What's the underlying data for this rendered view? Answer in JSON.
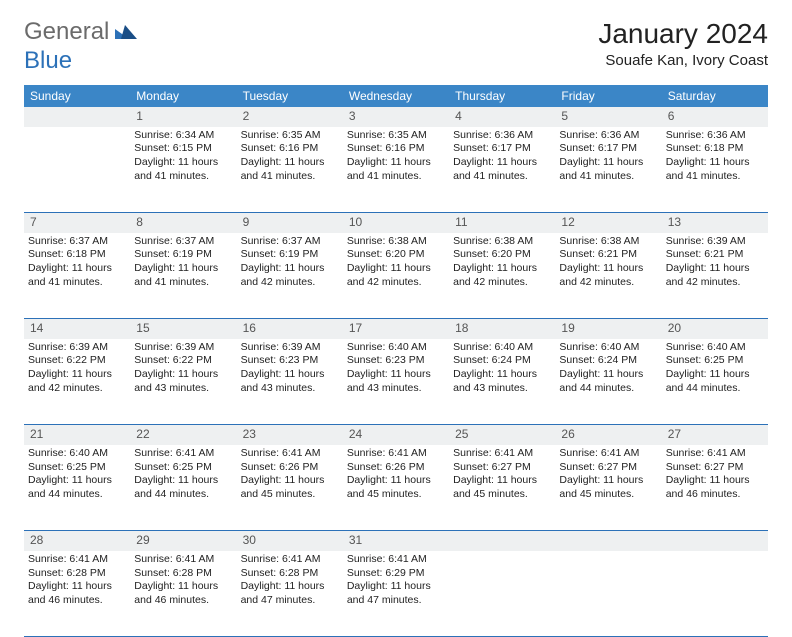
{
  "brand": {
    "general": "General",
    "blue": "Blue",
    "logo_color": "#2c71b8"
  },
  "title": "January 2024",
  "location": "Souafe Kan, Ivory Coast",
  "header_bg": "#3b86c7",
  "daynum_bg": "#eef0f1",
  "border_color": "#2c71b8",
  "weekdays": [
    "Sunday",
    "Monday",
    "Tuesday",
    "Wednesday",
    "Thursday",
    "Friday",
    "Saturday"
  ],
  "weeks": [
    [
      {
        "num": "",
        "lines": []
      },
      {
        "num": "1",
        "lines": [
          "Sunrise: 6:34 AM",
          "Sunset: 6:15 PM",
          "Daylight: 11 hours and 41 minutes."
        ]
      },
      {
        "num": "2",
        "lines": [
          "Sunrise: 6:35 AM",
          "Sunset: 6:16 PM",
          "Daylight: 11 hours and 41 minutes."
        ]
      },
      {
        "num": "3",
        "lines": [
          "Sunrise: 6:35 AM",
          "Sunset: 6:16 PM",
          "Daylight: 11 hours and 41 minutes."
        ]
      },
      {
        "num": "4",
        "lines": [
          "Sunrise: 6:36 AM",
          "Sunset: 6:17 PM",
          "Daylight: 11 hours and 41 minutes."
        ]
      },
      {
        "num": "5",
        "lines": [
          "Sunrise: 6:36 AM",
          "Sunset: 6:17 PM",
          "Daylight: 11 hours and 41 minutes."
        ]
      },
      {
        "num": "6",
        "lines": [
          "Sunrise: 6:36 AM",
          "Sunset: 6:18 PM",
          "Daylight: 11 hours and 41 minutes."
        ]
      }
    ],
    [
      {
        "num": "7",
        "lines": [
          "Sunrise: 6:37 AM",
          "Sunset: 6:18 PM",
          "Daylight: 11 hours and 41 minutes."
        ]
      },
      {
        "num": "8",
        "lines": [
          "Sunrise: 6:37 AM",
          "Sunset: 6:19 PM",
          "Daylight: 11 hours and 41 minutes."
        ]
      },
      {
        "num": "9",
        "lines": [
          "Sunrise: 6:37 AM",
          "Sunset: 6:19 PM",
          "Daylight: 11 hours and 42 minutes."
        ]
      },
      {
        "num": "10",
        "lines": [
          "Sunrise: 6:38 AM",
          "Sunset: 6:20 PM",
          "Daylight: 11 hours and 42 minutes."
        ]
      },
      {
        "num": "11",
        "lines": [
          "Sunrise: 6:38 AM",
          "Sunset: 6:20 PM",
          "Daylight: 11 hours and 42 minutes."
        ]
      },
      {
        "num": "12",
        "lines": [
          "Sunrise: 6:38 AM",
          "Sunset: 6:21 PM",
          "Daylight: 11 hours and 42 minutes."
        ]
      },
      {
        "num": "13",
        "lines": [
          "Sunrise: 6:39 AM",
          "Sunset: 6:21 PM",
          "Daylight: 11 hours and 42 minutes."
        ]
      }
    ],
    [
      {
        "num": "14",
        "lines": [
          "Sunrise: 6:39 AM",
          "Sunset: 6:22 PM",
          "Daylight: 11 hours and 42 minutes."
        ]
      },
      {
        "num": "15",
        "lines": [
          "Sunrise: 6:39 AM",
          "Sunset: 6:22 PM",
          "Daylight: 11 hours and 43 minutes."
        ]
      },
      {
        "num": "16",
        "lines": [
          "Sunrise: 6:39 AM",
          "Sunset: 6:23 PM",
          "Daylight: 11 hours and 43 minutes."
        ]
      },
      {
        "num": "17",
        "lines": [
          "Sunrise: 6:40 AM",
          "Sunset: 6:23 PM",
          "Daylight: 11 hours and 43 minutes."
        ]
      },
      {
        "num": "18",
        "lines": [
          "Sunrise: 6:40 AM",
          "Sunset: 6:24 PM",
          "Daylight: 11 hours and 43 minutes."
        ]
      },
      {
        "num": "19",
        "lines": [
          "Sunrise: 6:40 AM",
          "Sunset: 6:24 PM",
          "Daylight: 11 hours and 44 minutes."
        ]
      },
      {
        "num": "20",
        "lines": [
          "Sunrise: 6:40 AM",
          "Sunset: 6:25 PM",
          "Daylight: 11 hours and 44 minutes."
        ]
      }
    ],
    [
      {
        "num": "21",
        "lines": [
          "Sunrise: 6:40 AM",
          "Sunset: 6:25 PM",
          "Daylight: 11 hours and 44 minutes."
        ]
      },
      {
        "num": "22",
        "lines": [
          "Sunrise: 6:41 AM",
          "Sunset: 6:25 PM",
          "Daylight: 11 hours and 44 minutes."
        ]
      },
      {
        "num": "23",
        "lines": [
          "Sunrise: 6:41 AM",
          "Sunset: 6:26 PM",
          "Daylight: 11 hours and 45 minutes."
        ]
      },
      {
        "num": "24",
        "lines": [
          "Sunrise: 6:41 AM",
          "Sunset: 6:26 PM",
          "Daylight: 11 hours and 45 minutes."
        ]
      },
      {
        "num": "25",
        "lines": [
          "Sunrise: 6:41 AM",
          "Sunset: 6:27 PM",
          "Daylight: 11 hours and 45 minutes."
        ]
      },
      {
        "num": "26",
        "lines": [
          "Sunrise: 6:41 AM",
          "Sunset: 6:27 PM",
          "Daylight: 11 hours and 45 minutes."
        ]
      },
      {
        "num": "27",
        "lines": [
          "Sunrise: 6:41 AM",
          "Sunset: 6:27 PM",
          "Daylight: 11 hours and 46 minutes."
        ]
      }
    ],
    [
      {
        "num": "28",
        "lines": [
          "Sunrise: 6:41 AM",
          "Sunset: 6:28 PM",
          "Daylight: 11 hours and 46 minutes."
        ]
      },
      {
        "num": "29",
        "lines": [
          "Sunrise: 6:41 AM",
          "Sunset: 6:28 PM",
          "Daylight: 11 hours and 46 minutes."
        ]
      },
      {
        "num": "30",
        "lines": [
          "Sunrise: 6:41 AM",
          "Sunset: 6:28 PM",
          "Daylight: 11 hours and 47 minutes."
        ]
      },
      {
        "num": "31",
        "lines": [
          "Sunrise: 6:41 AM",
          "Sunset: 6:29 PM",
          "Daylight: 11 hours and 47 minutes."
        ]
      },
      {
        "num": "",
        "lines": []
      },
      {
        "num": "",
        "lines": []
      },
      {
        "num": "",
        "lines": []
      }
    ]
  ]
}
